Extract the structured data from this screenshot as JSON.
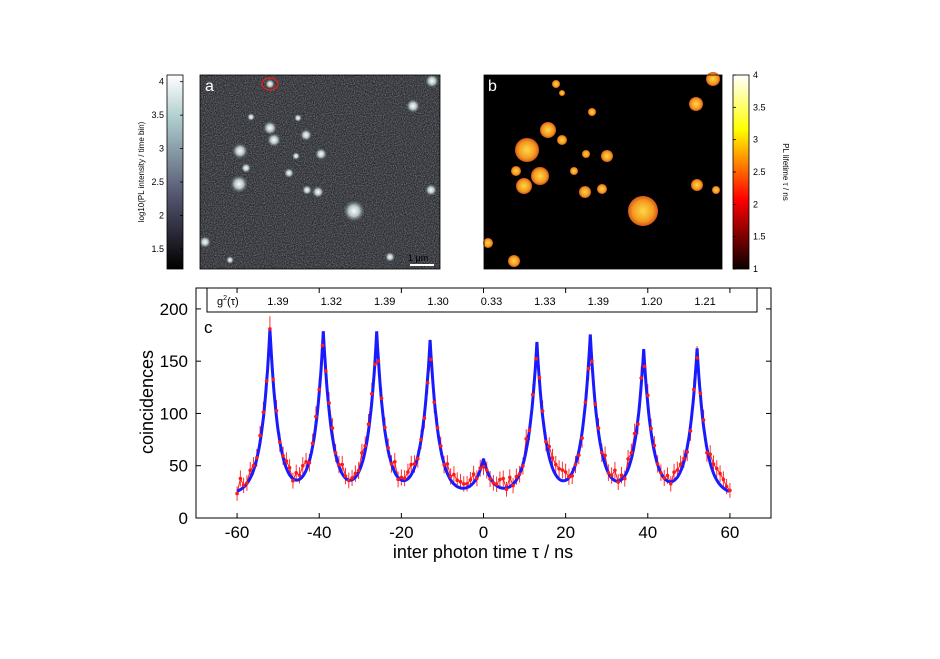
{
  "panel_a": {
    "letter": "a",
    "scale_bar": "1 μm",
    "colorbar": {
      "title": "log10(PL intensity / time bin)",
      "ticks": [
        "1.5",
        "2",
        "2.5",
        "3",
        "3.5",
        "4"
      ],
      "range": [
        1.2,
        4.1
      ],
      "colormap": "bone"
    }
  },
  "panel_b": {
    "letter": "b",
    "colorbar": {
      "title": "PL lifetime τ / ns",
      "ticks": [
        "1",
        "1.5",
        "2",
        "2.5",
        "3",
        "3.5",
        "4"
      ],
      "range": [
        1,
        4
      ],
      "colormap": "hot"
    }
  },
  "g2_row": {
    "label": "g2(τ)",
    "values": [
      "1.39",
      "1.32",
      "1.39",
      "1.30",
      "0.33",
      "1.33",
      "1.39",
      "1.20",
      "1.21"
    ]
  },
  "chart_data": {
    "type": "line",
    "panel_letter": "c",
    "xlabel": "inter photon time τ  / ns",
    "ylabel": "coincidences",
    "xlim": [
      -70,
      70
    ],
    "ylim": [
      0,
      220
    ],
    "xticks": [
      -60,
      -40,
      -20,
      0,
      20,
      40,
      60
    ],
    "yticks": [
      0,
      50,
      100,
      150,
      200
    ],
    "grid": false,
    "peak_delays": [
      -52,
      -39,
      -26,
      -13,
      0,
      13,
      26,
      39,
      52
    ],
    "series": [
      {
        "style": "data with error bars",
        "color": "#ff1a1a",
        "peak_heights": [
          178,
          176,
          179,
          165,
          52,
          170,
          171,
          161,
          158
        ],
        "baseline": 27
      },
      {
        "style": "fit",
        "color": "#1a1aff",
        "peak_heights": [
          180,
          178,
          178,
          170,
          56,
          168,
          175,
          161,
          162
        ],
        "baseline": 22
      }
    ]
  }
}
